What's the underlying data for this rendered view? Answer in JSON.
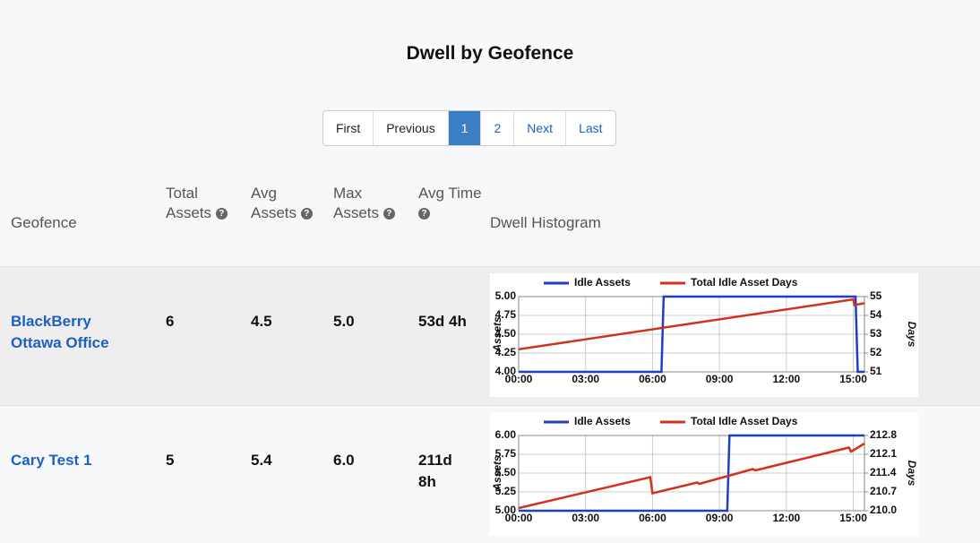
{
  "title": "Dwell by Geofence",
  "pagination": [
    "First",
    "Previous",
    "1",
    "2",
    "Next",
    "Last"
  ],
  "table": {
    "headers": [
      "Geofence",
      "Total Assets",
      "Avg Assets",
      "Max Assets",
      "Avg Time",
      "Dwell Histogram"
    ],
    "rows": [
      {
        "geofence": "BlackBerry Ottawa Office",
        "total_assets": "6",
        "avg_assets": "4.5",
        "max_assets": "5.0",
        "avg_time": "53d 4h",
        "chart_data": {
          "type": "line",
          "ylabel": "Assets",
          "y2label": "Days",
          "xlim": [
            0,
            15.5
          ],
          "xticks": [
            {
              "value": 0,
              "label": "00:00"
            },
            {
              "value": 3,
              "label": "03:00"
            },
            {
              "value": 6,
              "label": "06:00"
            },
            {
              "value": 9,
              "label": "09:00"
            },
            {
              "value": 12,
              "label": "12:00"
            },
            {
              "value": 15,
              "label": "15:00"
            }
          ],
          "ylim": [
            4,
            5
          ],
          "yticks": [
            {
              "value": 4,
              "label": "4.00"
            },
            {
              "value": 4.25,
              "label": "4.25"
            },
            {
              "value": 4.5,
              "label": "4.50"
            },
            {
              "value": 4.75,
              "label": "4.75"
            },
            {
              "value": 5,
              "label": "5.00"
            }
          ],
          "y2lim": [
            51,
            55
          ],
          "y2ticks": [
            51,
            52,
            53,
            54,
            55
          ],
          "grid": true,
          "series": [
            {
              "name": "Idle Assets",
              "color": "#1f3fbf",
              "x": [
                0,
                6.4,
                6.5,
                15.1,
                15.2,
                15.5
              ],
              "values": [
                4,
                4,
                5,
                5,
                4,
                4
              ]
            },
            {
              "name": "Total Idle Asset Days",
              "color": "#d0321e",
              "axis": "y2",
              "x": [
                0,
                15.0,
                15.05,
                15.5
              ],
              "values": [
                52.2,
                54.85,
                54.55,
                54.65
              ]
            }
          ]
        }
      },
      {
        "geofence": "Cary Test 1",
        "total_assets": "5",
        "avg_assets": "5.4",
        "max_assets": "6.0",
        "avg_time": "211d 8h",
        "chart_data": {
          "type": "line",
          "ylabel": "Assets",
          "y2label": "Days",
          "xlim": [
            0,
            15.5
          ],
          "xticks": [
            {
              "value": 0,
              "label": "00:00"
            },
            {
              "value": 3,
              "label": "03:00"
            },
            {
              "value": 6,
              "label": "06:00"
            },
            {
              "value": 9,
              "label": "09:00"
            },
            {
              "value": 12,
              "label": "12:00"
            },
            {
              "value": 15,
              "label": "15:00"
            }
          ],
          "ylim": [
            5,
            6
          ],
          "yticks": [
            {
              "value": 5,
              "label": "5.00"
            },
            {
              "value": 5.25,
              "label": "5.25"
            },
            {
              "value": 5.5,
              "label": "5.50"
            },
            {
              "value": 5.75,
              "label": "5.75"
            },
            {
              "value": 6,
              "label": "6.00"
            }
          ],
          "y2lim": [
            210,
            212.8
          ],
          "y2ticks": [
            {
              "value": 210,
              "label": "210.0"
            },
            210.7,
            211.4,
            212.1,
            212.8
          ],
          "grid": true,
          "series": [
            {
              "name": "Idle Assets",
              "color": "#1f3fbf",
              "x": [
                0,
                9.35,
                9.45,
                15.5
              ],
              "values": [
                5,
                5,
                6,
                6
              ]
            },
            {
              "name": "Total Idle Asset Days",
              "color": "#d0321e",
              "axis": "y2",
              "x": [
                0,
                5.9,
                6.0,
                8.0,
                8.1,
                10.5,
                10.6,
                14.8,
                14.9,
                15.5
              ],
              "values": [
                210.1,
                211.25,
                210.65,
                211.05,
                211.0,
                211.55,
                211.5,
                212.35,
                212.2,
                212.5
              ]
            }
          ]
        }
      }
    ]
  }
}
